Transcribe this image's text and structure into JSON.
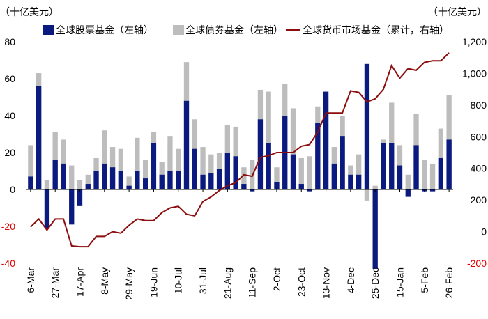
{
  "chart_data": {
    "type": "bar",
    "title": "",
    "left_unit_label": "（十亿美元）",
    "right_unit_label": "（十亿美元）",
    "legend": [
      {
        "key": "equity",
        "label": "全球股票基金（左轴）",
        "color": "#0a1a7f"
      },
      {
        "key": "bond",
        "label": "全球债券基金（左轴）",
        "color": "#bdbdbd"
      },
      {
        "key": "money",
        "label": "全球货币市场基金（累计，右轴）",
        "color": "#8b0d0d"
      }
    ],
    "left_axis": {
      "min": -40,
      "max": 80,
      "ticks": [
        80,
        60,
        40,
        20,
        0,
        -20,
        -40
      ]
    },
    "right_axis": {
      "min": -200,
      "max": 1200,
      "ticks": [
        1200,
        1000,
        800,
        600,
        400,
        200,
        0,
        -200
      ],
      "tick_labels": [
        "1,200",
        "1,000",
        "800",
        "600",
        "400",
        "200",
        "0",
        "-200"
      ]
    },
    "x_tick_labels": [
      "6-Mar",
      "27-Mar",
      "17-Apr",
      "8-May",
      "29-May",
      "19-Jun",
      "10-Jul",
      "31-Jul",
      "21-Aug",
      "11-Sep",
      "2-Oct",
      "23-Oct",
      "13-Nov",
      "4-Dec",
      "25-Dec",
      "15-Jan",
      "5-Feb",
      "26-Feb"
    ],
    "x_tick_every": 3,
    "series": [
      {
        "name": "全球股票基金（左轴）",
        "values": [
          7,
          56,
          -21,
          16,
          14,
          -19,
          -9,
          3,
          10,
          14,
          12,
          10,
          2,
          10,
          6,
          25,
          8,
          10,
          10,
          48,
          22,
          8,
          9,
          11,
          20,
          18,
          3,
          -1,
          38,
          25,
          4,
          40,
          19,
          3,
          -1,
          36,
          53,
          14,
          29,
          8,
          8,
          68,
          -43,
          25,
          25,
          13,
          -4,
          24,
          -1,
          -1,
          17,
          27
        ]
      },
      {
        "name": "全球债券基金（左轴）",
        "values": [
          24,
          63,
          5,
          31,
          27,
          13,
          5,
          8,
          17,
          32,
          23,
          22,
          7,
          28,
          16,
          31,
          15,
          29,
          22,
          69,
          38,
          23,
          19,
          20,
          35,
          34,
          12,
          16,
          54,
          53,
          12,
          57,
          44,
          17,
          18,
          45,
          50,
          23,
          40,
          13,
          19,
          -6,
          2,
          27,
          47,
          24,
          8,
          41,
          16,
          14,
          33,
          51
        ]
      },
      {
        "name": "全球货币市场基金（累计，右轴）",
        "values": [
          30,
          80,
          10,
          80,
          80,
          -90,
          -95,
          -95,
          -30,
          -30,
          0,
          -10,
          40,
          80,
          70,
          70,
          120,
          150,
          160,
          110,
          100,
          190,
          220,
          260,
          290,
          310,
          360,
          350,
          470,
          480,
          500,
          500,
          500,
          540,
          550,
          630,
          750,
          750,
          750,
          890,
          880,
          820,
          840,
          900,
          1050,
          970,
          1030,
          1020,
          1070,
          1080,
          1080,
          1130
        ]
      }
    ]
  }
}
